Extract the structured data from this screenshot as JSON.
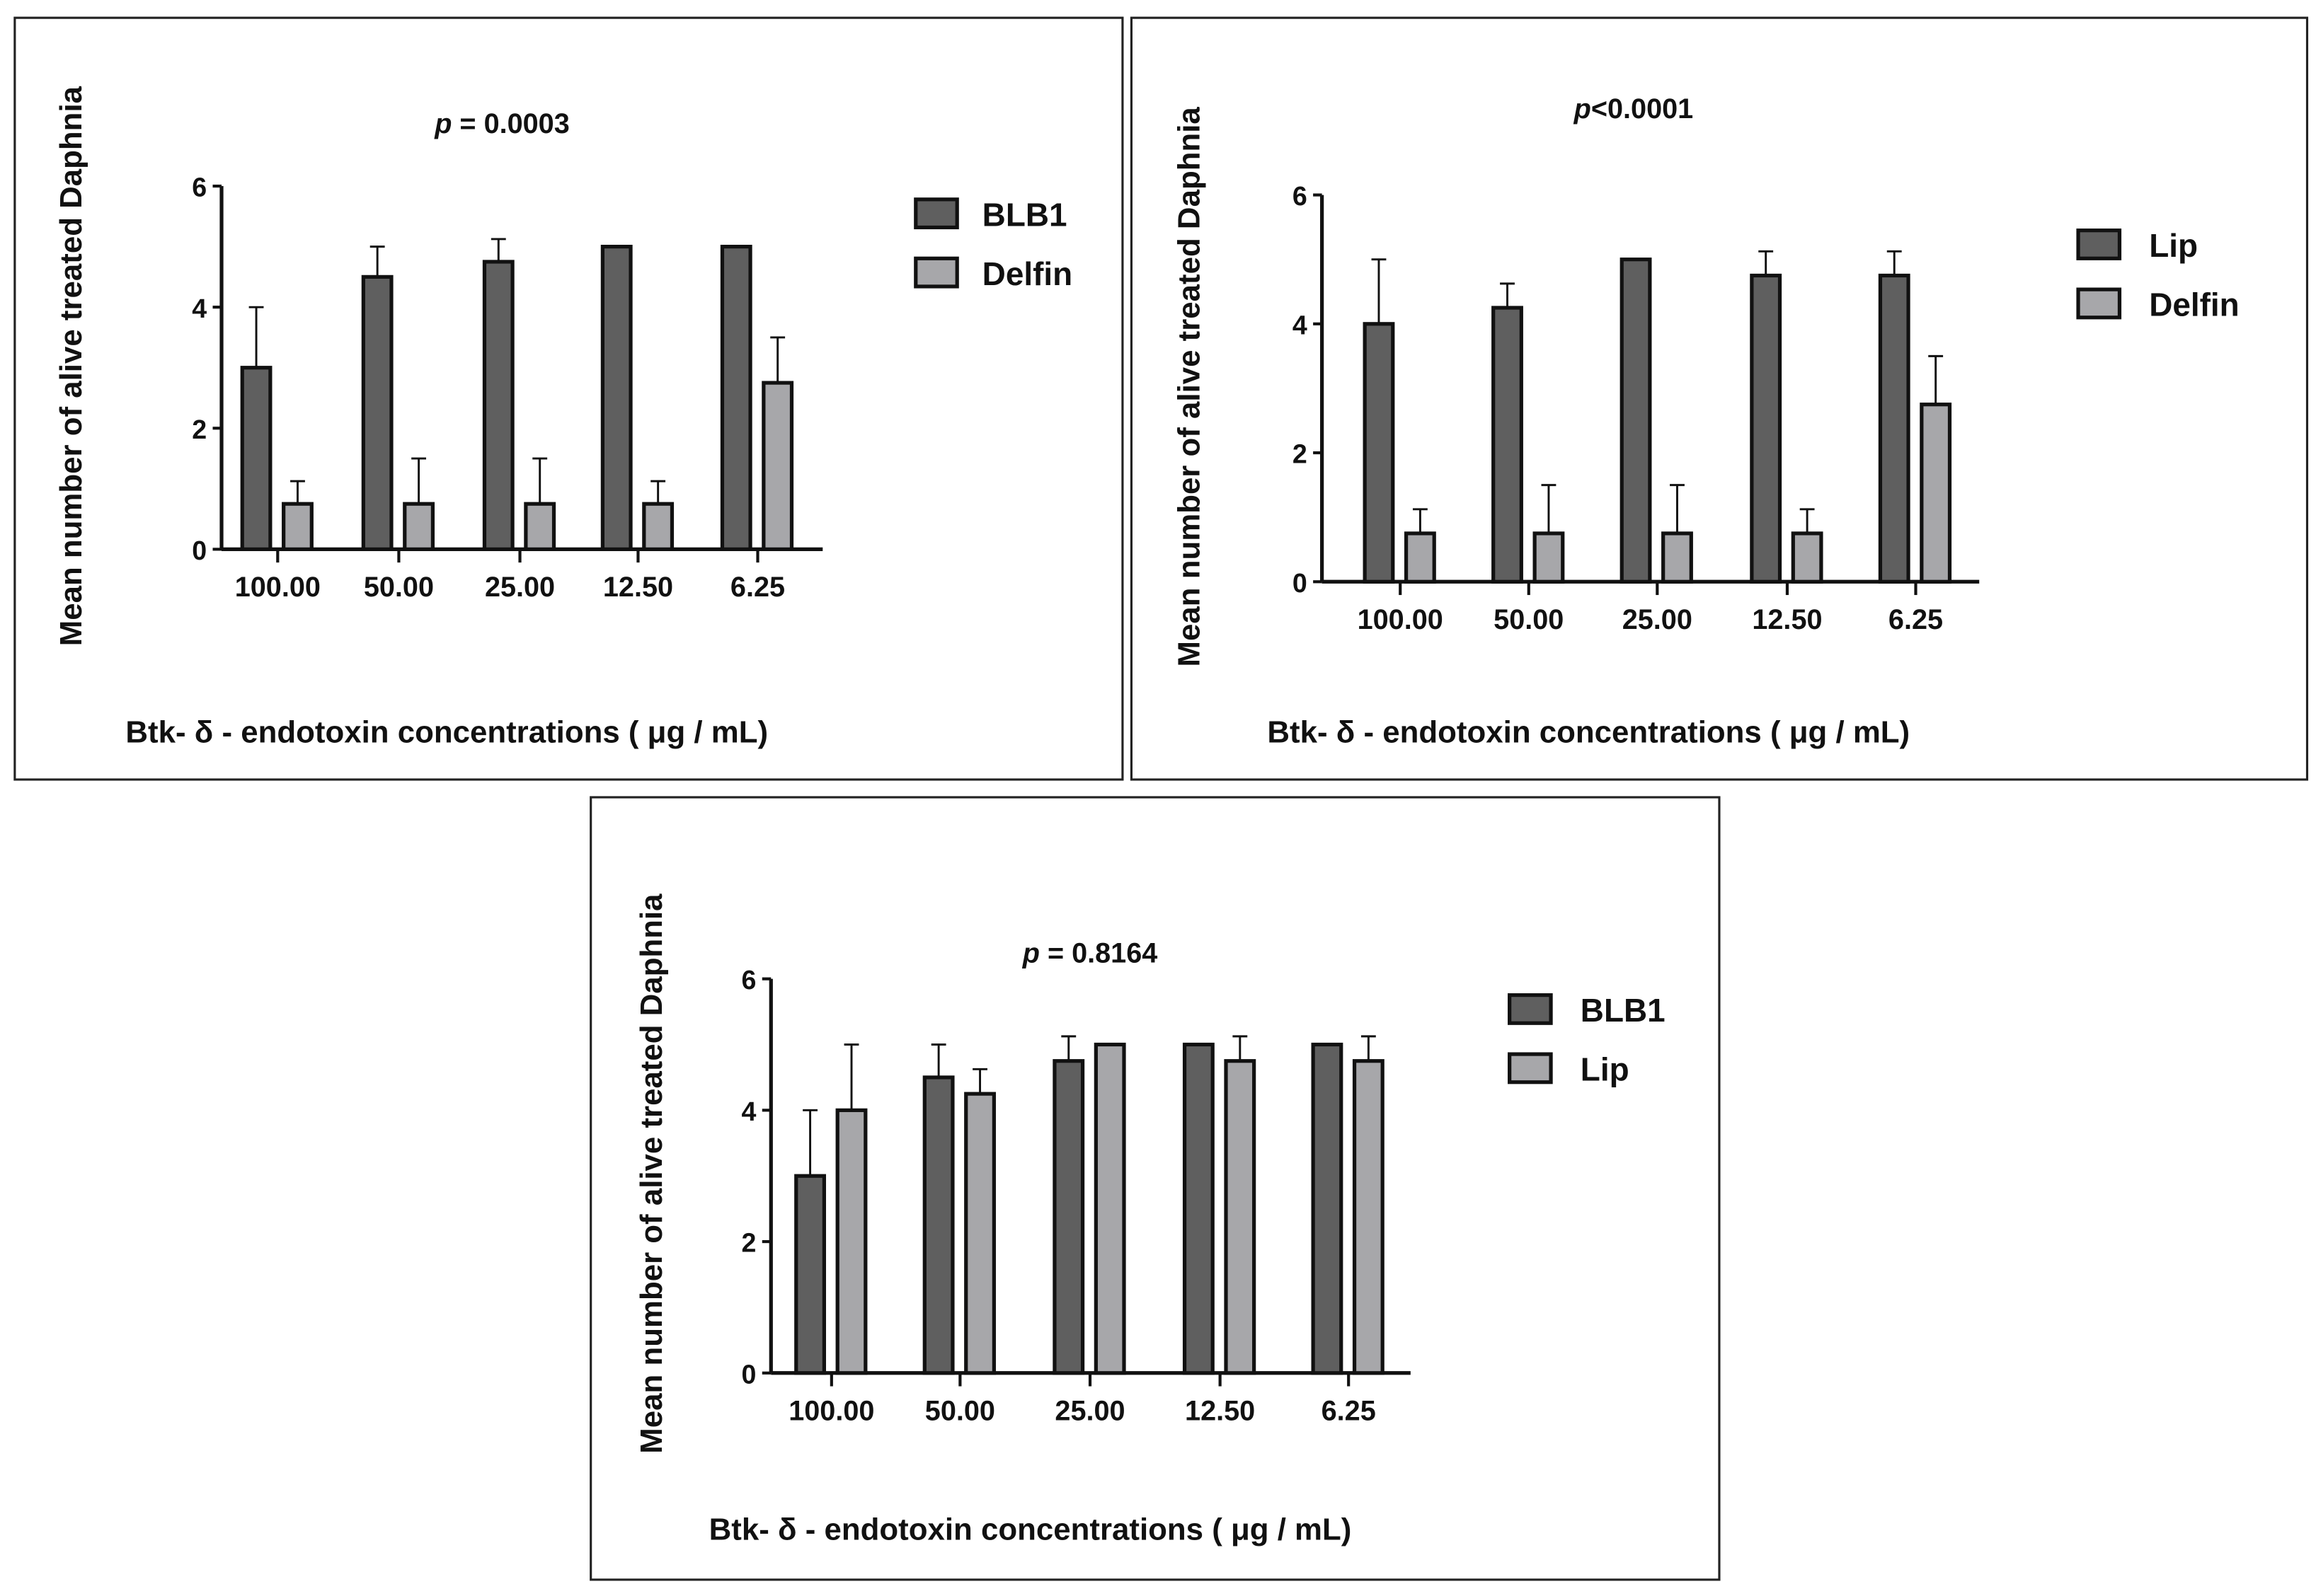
{
  "chart_data": [
    {
      "type": "bar",
      "title_prefix": "p",
      "title_rest": " = 0.0003",
      "xlabel": "Btk- δ - endotoxin concentrations ( μg / mL)",
      "ylabel": "Mean number of alive treated Daphnia",
      "ylim": [
        0,
        6
      ],
      "yticks": [
        "0",
        "2",
        "4",
        "6"
      ],
      "categories": [
        "100.00",
        "50.00",
        "25.00",
        "12.50",
        "6.25"
      ],
      "legend_position": "right",
      "series": [
        {
          "name": "BLB1",
          "color": "#5f5f5f",
          "values": [
            3,
            4.5,
            4.75,
            5,
            5
          ],
          "error": [
            1,
            0.5,
            0.375,
            0,
            0
          ]
        },
        {
          "name": "Delfin",
          "color": "#a7a7aa",
          "values": [
            0.75,
            0.75,
            0.75,
            0.75,
            2.75
          ],
          "error": [
            0.375,
            0.75,
            0.75,
            0.375,
            0.75
          ]
        }
      ]
    },
    {
      "type": "bar",
      "title_prefix": "p",
      "title_rest": "<0.0001",
      "xlabel": "Btk- δ - endotoxin concentrations ( μg / mL)",
      "ylabel": "Mean number of alive treated Daphnia",
      "ylim": [
        0,
        6
      ],
      "yticks": [
        "0",
        "2",
        "4",
        "6"
      ],
      "categories": [
        "100.00",
        "50.00",
        "25.00",
        "12.50",
        "6.25"
      ],
      "legend_position": "right",
      "series": [
        {
          "name": "Lip",
          "color": "#5f5f5f",
          "values": [
            4,
            4.25,
            5,
            4.75,
            4.75
          ],
          "error": [
            1,
            0.375,
            0,
            0.375,
            0.375
          ]
        },
        {
          "name": "Delfin",
          "color": "#a7a7aa",
          "values": [
            0.75,
            0.75,
            0.75,
            0.75,
            2.75
          ],
          "error": [
            0.375,
            0.75,
            0.75,
            0.375,
            0.75
          ]
        }
      ]
    },
    {
      "type": "bar",
      "title_prefix": "p",
      "title_rest": " = 0.8164",
      "xlabel": "Btk- δ - endotoxin concentrations ( μg / mL)",
      "ylabel": "Mean number of alive treated Daphnia",
      "ylim": [
        0,
        6
      ],
      "yticks": [
        "0",
        "2",
        "4",
        "6"
      ],
      "categories": [
        "100.00",
        "50.00",
        "25.00",
        "12.50",
        "6.25"
      ],
      "legend_position": "right",
      "series": [
        {
          "name": "BLB1",
          "color": "#5f5f5f",
          "values": [
            3,
            4.5,
            4.75,
            5,
            5
          ],
          "error": [
            1,
            0.5,
            0.375,
            0,
            0
          ]
        },
        {
          "name": "Lip",
          "color": "#a7a7aa",
          "values": [
            4,
            4.25,
            5,
            4.75,
            4.75
          ],
          "error": [
            1,
            0.375,
            0,
            0.375,
            0.375
          ]
        }
      ]
    }
  ]
}
